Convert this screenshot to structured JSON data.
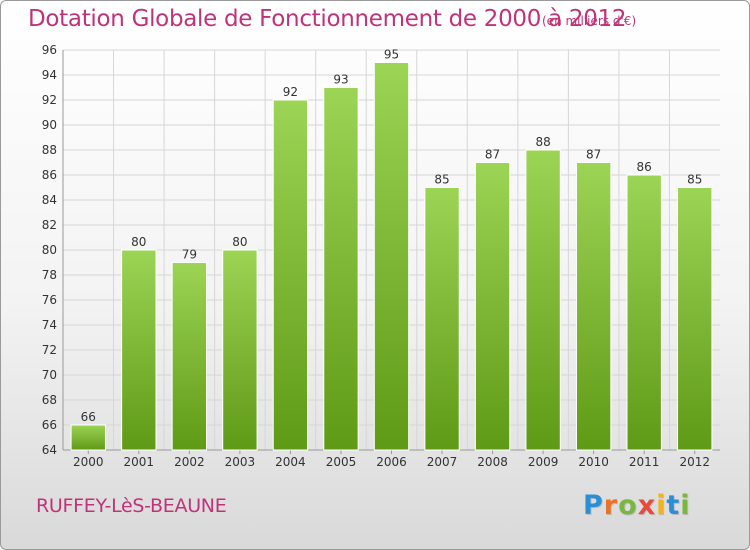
{
  "title": "Dotation Globale de Fonctionnement de 2000 à 2012",
  "subtitle": "(en milliers d'€)",
  "commune": "RUFFEY-LèS-BEAUNE",
  "logo": {
    "letters": [
      "P",
      "r",
      "o",
      "x",
      "i",
      "t",
      "i"
    ],
    "colors": [
      "#2a8fd6",
      "#e8732a",
      "#7ab642",
      "#e84a3c",
      "#f2b31f",
      "#2a8fd6",
      "#7ab642"
    ]
  },
  "colors": {
    "bar_top": "#9cd455",
    "bar_bottom": "#5f9a16",
    "grid": "#d6d6d6",
    "accent": "#c0337a"
  },
  "chart_data": {
    "type": "bar",
    "categories": [
      "2000",
      "2001",
      "2002",
      "2003",
      "2004",
      "2005",
      "2006",
      "2007",
      "2008",
      "2009",
      "2010",
      "2011",
      "2012"
    ],
    "values": [
      66,
      80,
      79,
      80,
      92,
      93,
      95,
      85,
      87,
      88,
      87,
      86,
      85
    ],
    "ylim": [
      64,
      96
    ],
    "yticks": [
      64,
      66,
      68,
      70,
      72,
      74,
      76,
      78,
      80,
      82,
      84,
      86,
      88,
      90,
      92,
      94,
      96
    ],
    "grid": true
  }
}
